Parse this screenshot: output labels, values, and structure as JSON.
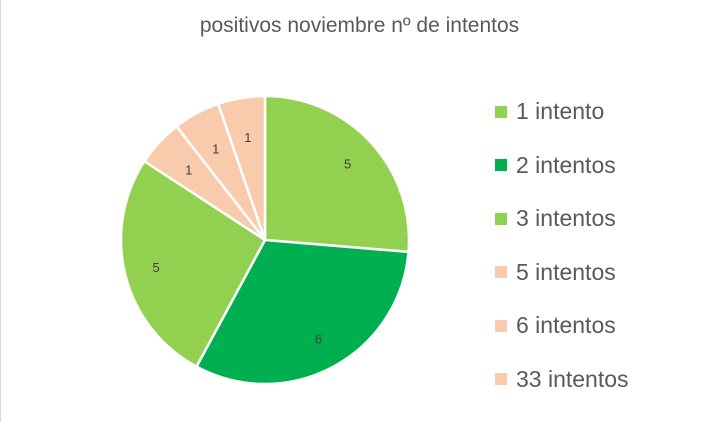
{
  "chart_data": {
    "type": "pie",
    "title": "positivos noviembre nº de intentos",
    "legend_position": "right",
    "categories": [
      "1 intento",
      "2 intentos",
      "3 intentos",
      "5 intentos",
      "6 intentos",
      "33 intentos"
    ],
    "values": [
      5,
      6,
      5,
      1,
      1,
      1
    ],
    "colors": [
      "#92d050",
      "#00b050",
      "#92d050",
      "#f8cbad",
      "#f8cbad",
      "#f8cbad"
    ],
    "data_labels": [
      "5",
      "6",
      "5",
      "1",
      "1",
      "1"
    ]
  }
}
